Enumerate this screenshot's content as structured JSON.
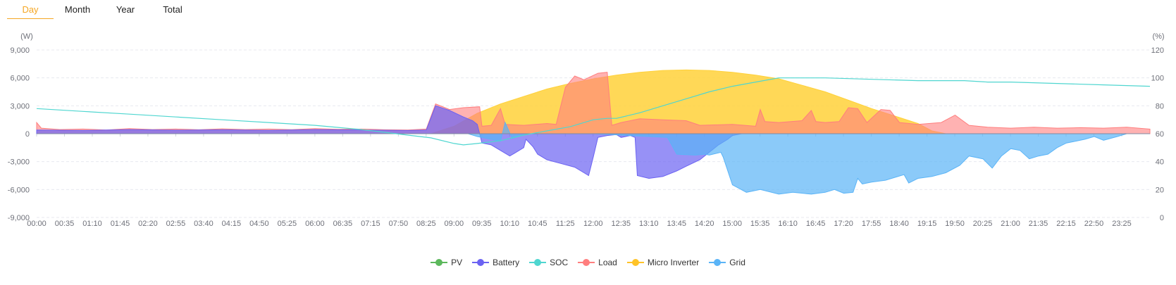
{
  "tabs": [
    {
      "label": "Day",
      "active": true
    },
    {
      "label": "Month",
      "active": false
    },
    {
      "label": "Year",
      "active": false
    },
    {
      "label": "Total",
      "active": false
    }
  ],
  "chart_data": {
    "type": "area",
    "y_left_unit": "(W)",
    "y_right_unit": "(%)",
    "y_left_ticks": [
      "9,000",
      "6,000",
      "3,000",
      "0",
      "-3,000",
      "-6,000",
      "-9,000"
    ],
    "y_right_ticks": [
      "120",
      "100",
      "80",
      "60",
      "40",
      "20",
      "0"
    ],
    "ylim_left": [
      -9000,
      9000
    ],
    "ylim_right": [
      0,
      120
    ],
    "grid": true,
    "legend_position": "bottom",
    "x_labels": [
      "00:00",
      "00:35",
      "01:10",
      "01:45",
      "02:20",
      "02:55",
      "03:40",
      "04:15",
      "04:50",
      "05:25",
      "06:00",
      "06:35",
      "07:15",
      "07:50",
      "08:25",
      "09:00",
      "09:35",
      "10:10",
      "10:45",
      "11:25",
      "12:00",
      "12:35",
      "13:10",
      "13:45",
      "14:20",
      "15:00",
      "15:35",
      "16:10",
      "16:45",
      "17:20",
      "17:55",
      "18:40",
      "19:15",
      "19:50",
      "20:25",
      "21:00",
      "21:35",
      "22:15",
      "22:50",
      "23:25"
    ],
    "x_range_hours": [
      0,
      24
    ],
    "series": [
      {
        "name": "PV",
        "color": "#5cb85c",
        "kind": "area",
        "points": [
          [
            0,
            0
          ],
          [
            24,
            0
          ]
        ]
      },
      {
        "name": "Micro Inverter",
        "color": "#ffd13a",
        "kind": "area",
        "points": [
          [
            0,
            0
          ],
          [
            8.5,
            0
          ],
          [
            9,
            800
          ],
          [
            9.5,
            2200
          ],
          [
            10,
            3200
          ],
          [
            10.5,
            4000
          ],
          [
            11,
            4800
          ],
          [
            11.5,
            5400
          ],
          [
            12,
            5900
          ],
          [
            12.5,
            6300
          ],
          [
            13,
            6600
          ],
          [
            13.5,
            6800
          ],
          [
            14,
            6850
          ],
          [
            14.5,
            6800
          ],
          [
            15,
            6600
          ],
          [
            15.5,
            6300
          ],
          [
            16,
            5900
          ],
          [
            16.5,
            5200
          ],
          [
            17,
            4500
          ],
          [
            17.5,
            3600
          ],
          [
            18,
            2700
          ],
          [
            18.5,
            1900
          ],
          [
            19,
            1100
          ],
          [
            19.3,
            300
          ],
          [
            19.6,
            0
          ],
          [
            24,
            0
          ]
        ]
      },
      {
        "name": "Load",
        "color": "#ff7e7e",
        "kind": "area",
        "points": [
          [
            0,
            1200
          ],
          [
            0.1,
            600
          ],
          [
            0.5,
            450
          ],
          [
            1,
            500
          ],
          [
            1.5,
            400
          ],
          [
            2,
            550
          ],
          [
            2.5,
            450
          ],
          [
            3,
            500
          ],
          [
            3.5,
            420
          ],
          [
            4,
            520
          ],
          [
            4.5,
            450
          ],
          [
            5,
            500
          ],
          [
            5.5,
            430
          ],
          [
            6,
            550
          ],
          [
            6.5,
            480
          ],
          [
            7,
            500
          ],
          [
            7.5,
            420
          ],
          [
            8,
            400
          ],
          [
            8.4,
            500
          ],
          [
            8.6,
            3200
          ],
          [
            8.9,
            2600
          ],
          [
            9.2,
            2800
          ],
          [
            9.55,
            2900
          ],
          [
            9.6,
            800
          ],
          [
            9.8,
            900
          ],
          [
            10,
            2700
          ],
          [
            10.1,
            1000
          ],
          [
            10.5,
            900
          ],
          [
            11,
            1100
          ],
          [
            11.2,
            1000
          ],
          [
            11.4,
            5000
          ],
          [
            11.6,
            6200
          ],
          [
            11.8,
            5800
          ],
          [
            12.1,
            6500
          ],
          [
            12.3,
            6600
          ],
          [
            12.4,
            900
          ],
          [
            12.6,
            1200
          ],
          [
            13,
            1600
          ],
          [
            13.5,
            1500
          ],
          [
            14,
            1400
          ],
          [
            14.3,
            900
          ],
          [
            15,
            1000
          ],
          [
            15.5,
            800
          ],
          [
            15.6,
            2600
          ],
          [
            15.7,
            1300
          ],
          [
            16,
            1200
          ],
          [
            16.5,
            1400
          ],
          [
            16.7,
            2500
          ],
          [
            16.8,
            1300
          ],
          [
            17,
            1200
          ],
          [
            17.3,
            1300
          ],
          [
            17.5,
            2800
          ],
          [
            17.7,
            2700
          ],
          [
            17.9,
            1200
          ],
          [
            18.2,
            2600
          ],
          [
            18.4,
            2500
          ],
          [
            18.6,
            1200
          ],
          [
            19,
            1000
          ],
          [
            19.5,
            1200
          ],
          [
            19.8,
            2000
          ],
          [
            20.1,
            900
          ],
          [
            20.5,
            700
          ],
          [
            21,
            600
          ],
          [
            21.5,
            700
          ],
          [
            22,
            600
          ],
          [
            22.5,
            650
          ],
          [
            23,
            600
          ],
          [
            23.5,
            700
          ],
          [
            24,
            500
          ]
        ]
      },
      {
        "name": "Battery",
        "color": "#6b62f2",
        "kind": "area",
        "points": [
          [
            0,
            400
          ],
          [
            1,
            350
          ],
          [
            2,
            450
          ],
          [
            3,
            380
          ],
          [
            4,
            420
          ],
          [
            5,
            360
          ],
          [
            6,
            450
          ],
          [
            7,
            400
          ],
          [
            8,
            350
          ],
          [
            8.4,
            400
          ],
          [
            8.6,
            3000
          ],
          [
            8.9,
            2500
          ],
          [
            9.2,
            1800
          ],
          [
            9.4,
            1400
          ],
          [
            9.5,
            1000
          ],
          [
            9.6,
            -1000
          ],
          [
            9.8,
            -1200
          ],
          [
            10,
            -1800
          ],
          [
            10.2,
            -2400
          ],
          [
            10.3,
            -2100
          ],
          [
            10.5,
            -1500
          ],
          [
            10.55,
            -600
          ],
          [
            10.7,
            -1400
          ],
          [
            10.8,
            -2200
          ],
          [
            11,
            -2800
          ],
          [
            11.3,
            -3200
          ],
          [
            11.6,
            -3600
          ],
          [
            11.8,
            -4200
          ],
          [
            11.9,
            -4500
          ],
          [
            12.0,
            -2500
          ],
          [
            12.1,
            -400
          ],
          [
            12.3,
            -200
          ],
          [
            12.5,
            -100
          ],
          [
            12.6,
            -400
          ],
          [
            12.8,
            -200
          ],
          [
            12.9,
            -400
          ],
          [
            12.95,
            -4500
          ],
          [
            13.2,
            -4800
          ],
          [
            13.5,
            -4600
          ],
          [
            13.8,
            -4000
          ],
          [
            14,
            -3500
          ],
          [
            14.3,
            -2800
          ],
          [
            14.5,
            -2000
          ],
          [
            14.7,
            -1200
          ],
          [
            14.9,
            -600
          ],
          [
            15,
            -200
          ],
          [
            15.1,
            -100
          ],
          [
            15.2,
            0
          ],
          [
            24,
            0
          ]
        ]
      },
      {
        "name": "Grid",
        "color": "#5ab4f7",
        "kind": "area",
        "points": [
          [
            0,
            0
          ],
          [
            9.3,
            0
          ],
          [
            9.5,
            -300
          ],
          [
            10,
            -800
          ],
          [
            10.1,
            1200
          ],
          [
            10.25,
            -500
          ],
          [
            10.6,
            0
          ],
          [
            11,
            0
          ],
          [
            12,
            0
          ],
          [
            13.6,
            -400
          ],
          [
            13.8,
            -2200
          ],
          [
            14.2,
            -2300
          ],
          [
            14.4,
            -2200
          ],
          [
            14.5,
            -2300
          ],
          [
            14.75,
            -2000
          ],
          [
            14.8,
            -2500
          ],
          [
            15,
            -5500
          ],
          [
            15.3,
            -6300
          ],
          [
            15.6,
            -6000
          ],
          [
            16,
            -6500
          ],
          [
            16.3,
            -6300
          ],
          [
            16.7,
            -6500
          ],
          [
            17,
            -6300
          ],
          [
            17.2,
            -6000
          ],
          [
            17.4,
            -6400
          ],
          [
            17.6,
            -6300
          ],
          [
            17.7,
            -4800
          ],
          [
            17.8,
            -5400
          ],
          [
            18,
            -5200
          ],
          [
            18.3,
            -5000
          ],
          [
            18.5,
            -4700
          ],
          [
            18.7,
            -4400
          ],
          [
            18.8,
            -5300
          ],
          [
            19,
            -4800
          ],
          [
            19.3,
            -4600
          ],
          [
            19.6,
            -4200
          ],
          [
            19.9,
            -3400
          ],
          [
            20.1,
            -2400
          ],
          [
            20.4,
            -2700
          ],
          [
            20.6,
            -3700
          ],
          [
            20.8,
            -2400
          ],
          [
            21,
            -1600
          ],
          [
            21.2,
            -1800
          ],
          [
            21.4,
            -2700
          ],
          [
            21.6,
            -2400
          ],
          [
            21.8,
            -2200
          ],
          [
            22,
            -1500
          ],
          [
            22.2,
            -1000
          ],
          [
            22.4,
            -800
          ],
          [
            22.6,
            -600
          ],
          [
            22.8,
            -300
          ],
          [
            23,
            -700
          ],
          [
            23.3,
            -300
          ],
          [
            23.5,
            0
          ],
          [
            24,
            0
          ]
        ]
      },
      {
        "name": "SOC",
        "color": "#4fd6d0",
        "kind": "line",
        "points": [
          [
            0,
            78
          ],
          [
            0.5,
            77
          ],
          [
            1,
            76
          ],
          [
            2,
            74
          ],
          [
            3,
            72
          ],
          [
            4,
            70
          ],
          [
            5,
            68
          ],
          [
            6,
            66
          ],
          [
            7,
            63
          ],
          [
            7.5,
            61
          ],
          [
            8,
            59
          ],
          [
            8.5,
            57
          ],
          [
            9,
            53
          ],
          [
            9.2,
            52
          ],
          [
            9.5,
            53
          ],
          [
            10,
            55
          ],
          [
            10.5,
            59
          ],
          [
            11,
            62
          ],
          [
            11.5,
            65
          ],
          [
            12,
            70
          ],
          [
            12.3,
            71
          ],
          [
            12.5,
            71
          ],
          [
            13,
            75
          ],
          [
            13.5,
            80
          ],
          [
            14,
            85
          ],
          [
            14.5,
            90
          ],
          [
            15,
            94
          ],
          [
            15.5,
            97
          ],
          [
            16,
            100
          ],
          [
            16.5,
            100
          ],
          [
            17,
            100
          ],
          [
            18,
            99
          ],
          [
            19,
            98
          ],
          [
            20,
            98
          ],
          [
            20.5,
            97
          ],
          [
            21,
            97
          ],
          [
            22,
            96
          ],
          [
            23,
            95
          ],
          [
            24,
            94
          ]
        ]
      }
    ]
  },
  "legend": [
    {
      "name": "PV",
      "color": "#5cb85c"
    },
    {
      "name": "Battery",
      "color": "#6b62f2"
    },
    {
      "name": "SOC",
      "color": "#4fd6d0"
    },
    {
      "name": "Load",
      "color": "#ff7e7e"
    },
    {
      "name": "Micro Inverter",
      "color": "#ffc328"
    },
    {
      "name": "Grid",
      "color": "#5ab4f7"
    }
  ]
}
